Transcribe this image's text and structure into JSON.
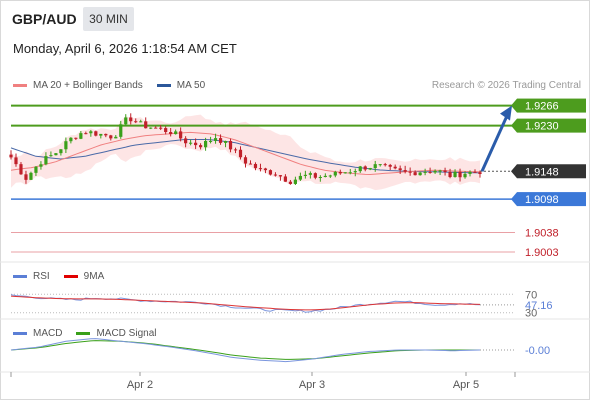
{
  "header": {
    "pair": "GBP/AUD",
    "timeframe": "30 MIN",
    "datetime": "Monday, April 6, 2026 1:18:54 AM CET"
  },
  "price_legend": [
    {
      "label": "MA 20 + Bollinger Bands",
      "color": "#f08080"
    },
    {
      "label": "MA 50",
      "color": "#2b579a"
    }
  ],
  "credit": "Research © 2026 Trading Central",
  "rsi_legend": [
    {
      "label": "RSI",
      "color": "#5b7fd6"
    },
    {
      "label": "9MA",
      "color": "#e00000"
    }
  ],
  "macd_legend": [
    {
      "label": "MACD",
      "color": "#5b7fd6"
    },
    {
      "label": "MACD Signal",
      "color": "#3aa01a"
    }
  ],
  "colors": {
    "resistance": "#4d9c1e",
    "current": "#333333",
    "support": "#3b78d8",
    "target_low": "#c0202a",
    "arrow": "#2a5caa",
    "candle_up": "#3aa01a",
    "candle_down": "#c0202a",
    "band_fill": "#fde2e2"
  },
  "chart_data": [
    {
      "type": "candlestick",
      "title": "GBP/AUD 30 MIN",
      "ylim": [
        1.8985,
        1.9285
      ],
      "x_ticks": [
        "Apr 2",
        "Apr 3",
        "Apr 5"
      ],
      "levels": [
        {
          "value": 1.9266,
          "label": "1.9266",
          "kind": "resistance"
        },
        {
          "value": 1.923,
          "label": "1.9230",
          "kind": "resistance"
        },
        {
          "value": 1.9148,
          "label": "1.9148",
          "kind": "current"
        },
        {
          "value": 1.9098,
          "label": "1.9098",
          "kind": "support"
        },
        {
          "value": 1.9038,
          "label": "1.9038",
          "kind": "target"
        },
        {
          "value": 1.9003,
          "label": "1.9003",
          "kind": "target"
        }
      ],
      "close_path": [
        1.9173,
        1.9135,
        1.9165,
        1.918,
        1.9205,
        1.922,
        1.9215,
        1.921,
        1.9245,
        1.923,
        1.9225,
        1.9218,
        1.92,
        1.9195,
        1.921,
        1.919,
        1.9165,
        1.915,
        1.9145,
        1.913,
        1.914,
        1.9138,
        1.9142,
        1.9148,
        1.9155,
        1.9158,
        1.915,
        1.9145,
        1.9148,
        1.915,
        1.914,
        1.9145,
        1.9148
      ],
      "ma20": [
        1.915,
        1.9155,
        1.9165,
        1.918,
        1.9195,
        1.9205,
        1.9212,
        1.9215,
        1.9218,
        1.9215,
        1.9205,
        1.919,
        1.9175,
        1.916,
        1.915,
        1.9145,
        1.9142,
        1.9145,
        1.9148,
        1.915,
        1.9148,
        1.9147
      ],
      "ma50": [
        1.919,
        1.9175,
        1.917,
        1.9175,
        1.9185,
        1.9195,
        1.92,
        1.9205,
        1.9205,
        1.92,
        1.919,
        1.918,
        1.917,
        1.9162,
        1.9155,
        1.915,
        1.9148,
        1.9147,
        1.9146,
        1.9145
      ]
    },
    {
      "type": "line",
      "title": "RSI",
      "ylim": [
        25,
        75
      ],
      "levels": [
        70,
        30
      ],
      "series": [
        {
          "name": "RSI",
          "values": [
            68,
            64,
            60,
            58,
            62,
            60,
            57,
            55,
            54,
            52,
            45,
            40,
            36,
            34,
            33,
            38,
            45,
            50,
            55,
            52,
            47,
            50,
            47
          ]
        },
        {
          "name": "9MA",
          "values": [
            66,
            63,
            61,
            60,
            60,
            59,
            57,
            55,
            53,
            51,
            47,
            43,
            40,
            37,
            36,
            38,
            43,
            48,
            51,
            52,
            50,
            49,
            48
          ]
        }
      ],
      "last_value": "47.16"
    },
    {
      "type": "line",
      "title": "MACD",
      "series": [
        {
          "name": "MACD",
          "values": [
            0.0,
            0.0004,
            0.0012,
            0.0016,
            0.0012,
            0.0008,
            0.0003,
            -0.0003,
            -0.001,
            -0.0014,
            -0.0016,
            -0.0012,
            -0.0006,
            -0.0002,
            0.0,
            0.0,
            -0.0001,
            0.0
          ]
        },
        {
          "name": "MACD Signal",
          "values": [
            0.0,
            0.0003,
            0.0009,
            0.0013,
            0.0012,
            0.0009,
            0.0004,
            -0.0001,
            -0.0007,
            -0.0011,
            -0.0013,
            -0.0012,
            -0.0008,
            -0.0004,
            -0.0001,
            0.0,
            0.0,
            0.0
          ]
        }
      ],
      "last_value": "-0.00"
    }
  ]
}
